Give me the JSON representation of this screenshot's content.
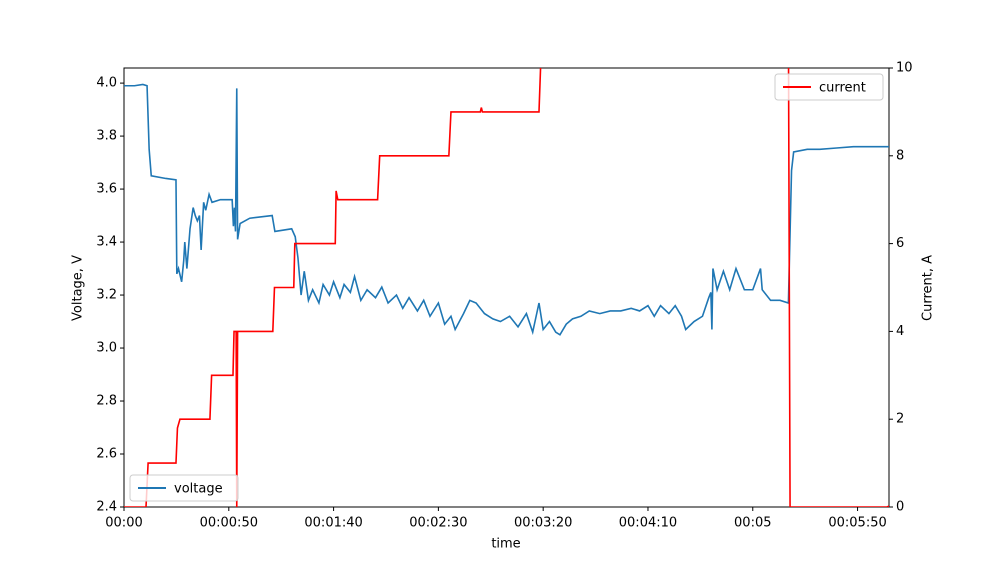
{
  "chart_data": {
    "type": "line",
    "xlabel": "time",
    "ylabel": "Voltage, V",
    "y2label": "Current, A",
    "xlim": [
      0,
      365
    ],
    "ylim": [
      2.4,
      4.057
    ],
    "y2lim": [
      0,
      10
    ],
    "xticks": [
      {
        "value": 0,
        "label": "00:00"
      },
      {
        "value": 50,
        "label": "00:00:50"
      },
      {
        "value": 100,
        "label": "00:01:40"
      },
      {
        "value": 150,
        "label": "00:02:30"
      },
      {
        "value": 200,
        "label": "00:03:20"
      },
      {
        "value": 250,
        "label": "00:04:10"
      },
      {
        "value": 300,
        "label": "00:05"
      },
      {
        "value": 350,
        "label": "00:05:50"
      }
    ],
    "yticks": [
      2.4,
      2.6,
      2.8,
      {
        "value": 3,
        "label": "3.0"
      },
      3.2,
      3.4,
      3.6,
      3.8,
      {
        "value": 4,
        "label": "4.0"
      }
    ],
    "y2ticks": [
      0,
      2,
      4,
      6,
      8,
      10
    ],
    "series": [
      {
        "name": "voltage",
        "color": "#1f77b4",
        "axis": "y",
        "legend": "lower left",
        "x": [
          0,
          5,
          9,
          11,
          12,
          13,
          20,
          24.8,
          25.2,
          26,
          27.5,
          28.5,
          29,
          30,
          31.5,
          33,
          34,
          35,
          36,
          36.8,
          38,
          39,
          40.6,
          42,
          46,
          51.6,
          52.2,
          52.7,
          53.2,
          53.8,
          54.2,
          55.4,
          60,
          70.7,
          72,
          80,
          81.7,
          83,
          84.5,
          86,
          88,
          90,
          93,
          95,
          98,
          100,
          103,
          105,
          108,
          110,
          113,
          116,
          120,
          123,
          126,
          130,
          133,
          136,
          140,
          143,
          146,
          150,
          153,
          156,
          158,
          162,
          165,
          168,
          172,
          176,
          179.6,
          184,
          188,
          192,
          195,
          198,
          200,
          203,
          206,
          208,
          211,
          214,
          218,
          222,
          227,
          232,
          237,
          242,
          246,
          250,
          253,
          256,
          260,
          263,
          266,
          268,
          272,
          276,
          279,
          280,
          280.5,
          281,
          283,
          286,
          289,
          292,
          296,
          300,
          303.7,
          304.5,
          308.5,
          313,
          317,
          318.5,
          319.5,
          326,
          332,
          340,
          348,
          356,
          365
        ],
        "values": [
          3.99,
          3.99,
          3.995,
          3.99,
          3.75,
          3.65,
          3.64,
          3.635,
          3.28,
          3.3,
          3.25,
          3.33,
          3.4,
          3.3,
          3.45,
          3.53,
          3.5,
          3.48,
          3.5,
          3.37,
          3.55,
          3.52,
          3.58,
          3.55,
          3.56,
          3.56,
          3.46,
          3.53,
          3.44,
          3.98,
          3.41,
          3.47,
          3.49,
          3.5,
          3.44,
          3.45,
          3.42,
          3.34,
          3.2,
          3.29,
          3.18,
          3.22,
          3.17,
          3.24,
          3.2,
          3.25,
          3.19,
          3.24,
          3.21,
          3.27,
          3.18,
          3.22,
          3.19,
          3.23,
          3.17,
          3.2,
          3.15,
          3.19,
          3.14,
          3.18,
          3.12,
          3.17,
          3.09,
          3.12,
          3.07,
          3.13,
          3.18,
          3.17,
          3.13,
          3.11,
          3.1,
          3.12,
          3.08,
          3.13,
          3.06,
          3.17,
          3.07,
          3.1,
          3.06,
          3.05,
          3.09,
          3.11,
          3.12,
          3.14,
          3.13,
          3.14,
          3.14,
          3.15,
          3.14,
          3.16,
          3.12,
          3.16,
          3.13,
          3.16,
          3.12,
          3.07,
          3.1,
          3.12,
          3.19,
          3.21,
          3.07,
          3.3,
          3.22,
          3.29,
          3.22,
          3.3,
          3.22,
          3.22,
          3.3,
          3.22,
          3.18,
          3.18,
          3.17,
          3.67,
          3.74,
          3.75,
          3.75,
          3.755,
          3.76,
          3.76,
          3.76
        ]
      },
      {
        "name": "current",
        "color": "#ff0000",
        "axis": "y2",
        "legend": "upper right",
        "x": [
          0,
          10.5,
          11.5,
          24.8,
          25.5,
          26.7,
          41,
          41.8,
          52,
          52.5,
          53.5,
          53.8,
          54.2,
          71,
          71.8,
          81,
          81.5,
          100.8,
          101.2,
          102,
          121,
          122,
          155,
          156,
          170,
          170.5,
          171,
          198,
          199.5,
          317,
          317.8,
          364,
          365
        ],
        "values": [
          0,
          0,
          1,
          1,
          1.8,
          2,
          2,
          3,
          3,
          4,
          4,
          0,
          4,
          4,
          5,
          5,
          6,
          6,
          7.2,
          7,
          7,
          8,
          8,
          9,
          9,
          9.1,
          9,
          9,
          11,
          11,
          0,
          0,
          0.02
        ]
      }
    ]
  }
}
